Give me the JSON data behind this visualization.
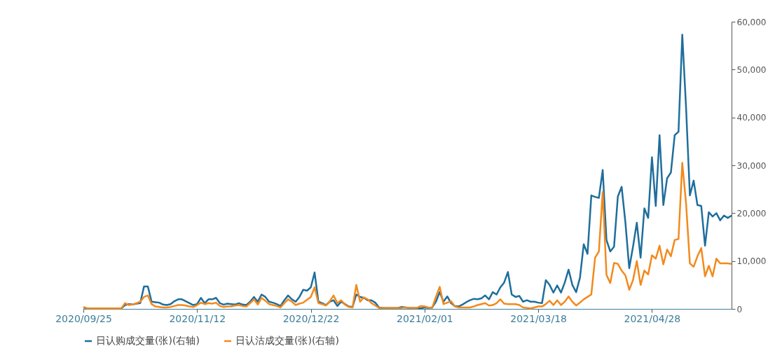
{
  "chart_data": {
    "type": "line",
    "categories": [
      "2020/09/25",
      null,
      null,
      null,
      null,
      null,
      null,
      null,
      null,
      null,
      null,
      null,
      null,
      null,
      null,
      null,
      null,
      null,
      null,
      null,
      null,
      null,
      null,
      null,
      null,
      null,
      null,
      null,
      null,
      null,
      "2020/11/12",
      null,
      null,
      null,
      null,
      null,
      null,
      null,
      null,
      null,
      null,
      null,
      null,
      null,
      null,
      null,
      null,
      null,
      null,
      null,
      null,
      null,
      null,
      null,
      null,
      null,
      null,
      null,
      null,
      null,
      "2020/12/22",
      null,
      null,
      null,
      null,
      null,
      null,
      null,
      null,
      null,
      null,
      null,
      null,
      null,
      null,
      null,
      null,
      null,
      null,
      null,
      null,
      null,
      null,
      null,
      null,
      null,
      null,
      null,
      null,
      null,
      "2021/02/01",
      null,
      null,
      null,
      null,
      null,
      null,
      null,
      null,
      null,
      null,
      null,
      null,
      null,
      null,
      null,
      null,
      null,
      null,
      null,
      null,
      null,
      null,
      null,
      null,
      null,
      null,
      null,
      null,
      null,
      "2021/03/18",
      null,
      null,
      null,
      null,
      null,
      null,
      null,
      null,
      null,
      null,
      null,
      null,
      null,
      null,
      null,
      null,
      null,
      null,
      null,
      null,
      null,
      null,
      null,
      null,
      null,
      null,
      null,
      null,
      null,
      "2021/04/28",
      null,
      null,
      null,
      null,
      null,
      null,
      null,
      null,
      null,
      null,
      null,
      null,
      null,
      null,
      null,
      null,
      null,
      null,
      null,
      null,
      null
    ],
    "series": [
      {
        "name": "日认购成交量(张)(右轴)",
        "color": "#1f6e9c",
        "values": [
          300,
          100,
          100,
          100,
          100,
          100,
          100,
          100,
          100,
          100,
          100,
          800,
          1000,
          900,
          1100,
          1200,
          4700,
          4700,
          1500,
          1400,
          1300,
          900,
          800,
          1000,
          1600,
          2000,
          2000,
          1600,
          1200,
          800,
          1000,
          2300,
          1200,
          2000,
          2000,
          2300,
          1200,
          900,
          1100,
          1000,
          900,
          1200,
          900,
          800,
          1500,
          2500,
          1500,
          3000,
          2500,
          1500,
          1300,
          1000,
          600,
          1800,
          2800,
          2000,
          1500,
          2500,
          4000,
          3800,
          4500,
          7600,
          1500,
          1200,
          800,
          1500,
          1800,
          600,
          1500,
          1000,
          500,
          400,
          3000,
          2500,
          2300,
          1800,
          1800,
          1300,
          300,
          200,
          200,
          200,
          200,
          200,
          400,
          300,
          200,
          200,
          200,
          100,
          300,
          200,
          300,
          1500,
          3500,
          1500,
          2600,
          1200,
          600,
          500,
          900,
          1400,
          1800,
          2100,
          2000,
          2200,
          2800,
          2000,
          3500,
          3000,
          4500,
          5500,
          7700,
          3000,
          2500,
          2700,
          1500,
          1800,
          1500,
          1500,
          1300,
          1200,
          6000,
          5000,
          3400,
          4900,
          3400,
          5500,
          8200,
          5000,
          3500,
          6500,
          13500,
          11500,
          23700,
          23400,
          23200,
          29000,
          14400,
          12000,
          13000,
          23500,
          25500,
          18000,
          8500,
          13000,
          18000,
          10700,
          21000,
          19000,
          31700,
          21500,
          36300,
          21700,
          27300,
          28500,
          36300,
          37000,
          57300,
          42000,
          23700,
          26800,
          21700,
          21500,
          13200,
          20200,
          19300,
          20000,
          18500,
          19500,
          19000,
          19500
        ]
      },
      {
        "name": "日认沽成交量(张)(右轴)",
        "color": "#f28a1d",
        "values": [
          400,
          100,
          100,
          100,
          100,
          100,
          100,
          100,
          100,
          100,
          100,
          1200,
          800,
          900,
          1200,
          1500,
          2500,
          2800,
          1000,
          500,
          400,
          300,
          300,
          400,
          600,
          800,
          800,
          700,
          500,
          400,
          800,
          1300,
          1000,
          1200,
          1100,
          1300,
          600,
          400,
          500,
          500,
          700,
          800,
          600,
          500,
          1200,
          2000,
          900,
          2300,
          1700,
          1000,
          800,
          600,
          300,
          1200,
          2000,
          1500,
          800,
          1100,
          1300,
          1900,
          2500,
          4500,
          1200,
          1000,
          700,
          1600,
          2800,
          1200,
          1800,
          900,
          400,
          300,
          5000,
          1500,
          2400,
          2000,
          1200,
          700,
          200,
          200,
          200,
          200,
          200,
          200,
          200,
          300,
          200,
          200,
          200,
          600,
          500,
          300,
          200,
          2500,
          4600,
          1000,
          1300,
          1600,
          500,
          300,
          300,
          300,
          300,
          500,
          800,
          1000,
          1200,
          700,
          800,
          1200,
          2000,
          1100,
          1000,
          1000,
          1000,
          800,
          300,
          200,
          100,
          300,
          500,
          500,
          1000,
          1700,
          800,
          1800,
          800,
          1500,
          2600,
          1500,
          700,
          1300,
          2000,
          2500,
          3000,
          10700,
          12000,
          24400,
          7100,
          5400,
          9600,
          9400,
          8000,
          7000,
          4000,
          6000,
          10000,
          5000,
          8000,
          7200,
          11200,
          10500,
          13200,
          9300,
          12400,
          11000,
          14400,
          14600,
          30500,
          22000,
          9500,
          8800,
          11000,
          12700,
          6800,
          9000,
          6800,
          10500,
          9500,
          9500,
          9500,
          9400
        ]
      }
    ],
    "ylim": [
      0,
      60000
    ],
    "yticks": [
      0,
      {
        "value": 10000,
        "label": "10,000"
      },
      {
        "value": 20000,
        "label": "20,000"
      },
      {
        "value": 30000,
        "label": "30,000"
      },
      {
        "value": 40000,
        "label": "40,000"
      },
      {
        "value": 50000,
        "label": "50,000"
      },
      {
        "value": 60000,
        "label": "60,000"
      }
    ],
    "legend": "bottom",
    "marker": "none",
    "grid": false
  }
}
